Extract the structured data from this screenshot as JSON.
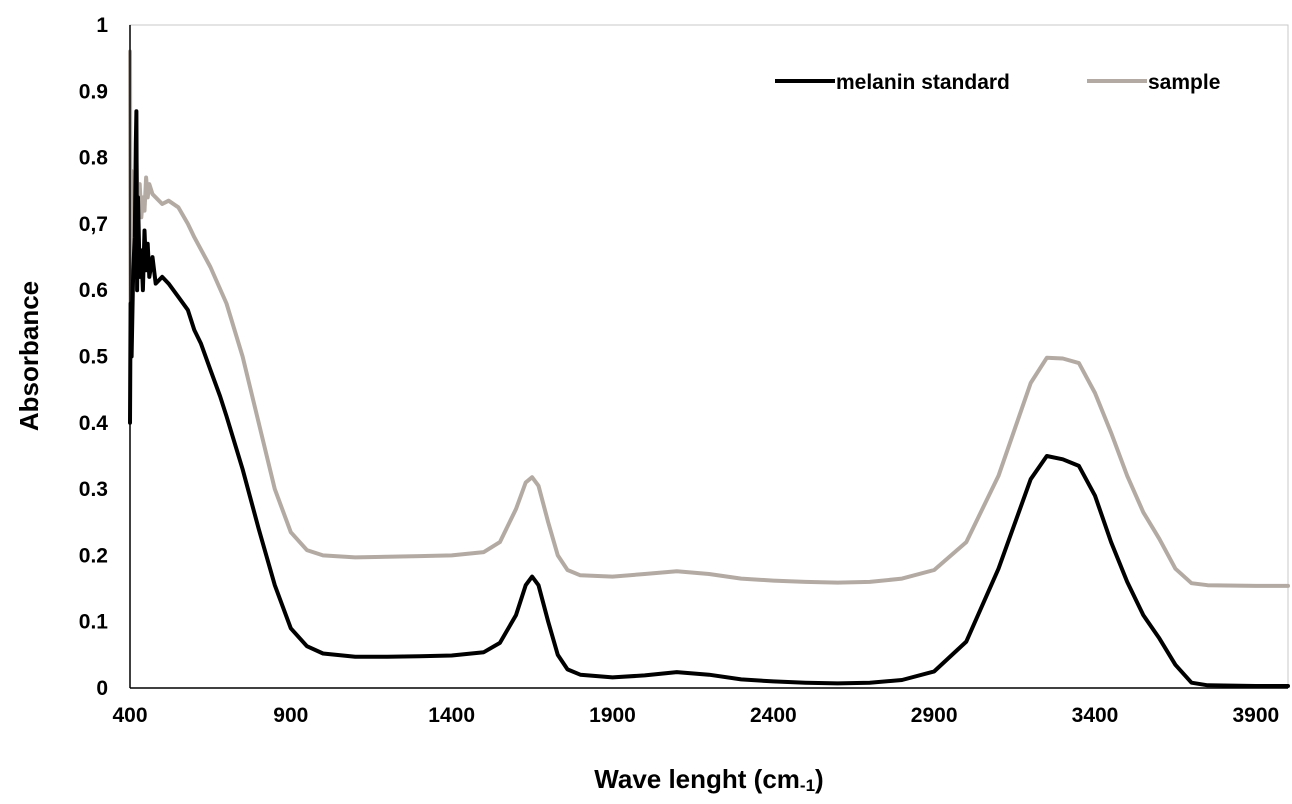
{
  "chart_data": {
    "type": "line",
    "title": "",
    "xlabel": "Wave lenght (cm-1)",
    "xlabel_main": "Wave lenght (cm",
    "xlabel_sub": "-1",
    "xlabel_close": ")",
    "ylabel": "Absorbance",
    "xlim": [
      400,
      4000
    ],
    "ylim": [
      0,
      1
    ],
    "x_ticks": [
      400,
      900,
      1400,
      1900,
      2400,
      2900,
      3400,
      3900
    ],
    "x_tick_labels": [
      "400",
      "900",
      "1400",
      "1900",
      "2400",
      "2900",
      "3400",
      "3900"
    ],
    "y_ticks": [
      0,
      0.1,
      0.2,
      0.3,
      0.4,
      0.5,
      0.6,
      0.7,
      0.8,
      0.9,
      1
    ],
    "y_tick_labels": [
      "0",
      "0.1",
      "0.2",
      "0.3",
      "0.4",
      "0.5",
      "0.6",
      "0,7",
      "0.8",
      "0.9",
      "1"
    ],
    "grid": false,
    "legend_position": "top-right",
    "series": [
      {
        "name": "melanin standard",
        "color": "#000000",
        "points": [
          [
            400,
            0.4
          ],
          [
            402,
            0.58
          ],
          [
            405,
            0.5
          ],
          [
            410,
            0.63
          ],
          [
            415,
            0.68
          ],
          [
            418,
            0.82
          ],
          [
            420,
            0.87
          ],
          [
            422,
            0.6
          ],
          [
            425,
            0.74
          ],
          [
            430,
            0.62
          ],
          [
            435,
            0.66
          ],
          [
            440,
            0.6
          ],
          [
            445,
            0.69
          ],
          [
            450,
            0.63
          ],
          [
            455,
            0.67
          ],
          [
            460,
            0.62
          ],
          [
            470,
            0.65
          ],
          [
            480,
            0.61
          ],
          [
            500,
            0.62
          ],
          [
            520,
            0.61
          ],
          [
            550,
            0.59
          ],
          [
            580,
            0.57
          ],
          [
            600,
            0.54
          ],
          [
            620,
            0.52
          ],
          [
            650,
            0.48
          ],
          [
            680,
            0.44
          ],
          [
            700,
            0.41
          ],
          [
            750,
            0.33
          ],
          [
            800,
            0.24
          ],
          [
            850,
            0.155
          ],
          [
            900,
            0.09
          ],
          [
            950,
            0.063
          ],
          [
            1000,
            0.052
          ],
          [
            1100,
            0.047
          ],
          [
            1200,
            0.047
          ],
          [
            1300,
            0.048
          ],
          [
            1400,
            0.049
          ],
          [
            1500,
            0.054
          ],
          [
            1550,
            0.068
          ],
          [
            1600,
            0.11
          ],
          [
            1630,
            0.155
          ],
          [
            1650,
            0.168
          ],
          [
            1670,
            0.155
          ],
          [
            1700,
            0.1
          ],
          [
            1730,
            0.05
          ],
          [
            1760,
            0.028
          ],
          [
            1800,
            0.02
          ],
          [
            1900,
            0.016
          ],
          [
            2000,
            0.019
          ],
          [
            2100,
            0.024
          ],
          [
            2200,
            0.02
          ],
          [
            2300,
            0.013
          ],
          [
            2400,
            0.01
          ],
          [
            2500,
            0.008
          ],
          [
            2600,
            0.007
          ],
          [
            2700,
            0.008
          ],
          [
            2800,
            0.012
          ],
          [
            2900,
            0.025
          ],
          [
            3000,
            0.07
          ],
          [
            3100,
            0.18
          ],
          [
            3200,
            0.315
          ],
          [
            3250,
            0.35
          ],
          [
            3300,
            0.345
          ],
          [
            3350,
            0.335
          ],
          [
            3400,
            0.29
          ],
          [
            3450,
            0.22
          ],
          [
            3500,
            0.16
          ],
          [
            3550,
            0.11
          ],
          [
            3600,
            0.075
          ],
          [
            3650,
            0.035
          ],
          [
            3700,
            0.008
          ],
          [
            3750,
            0.004
          ],
          [
            3900,
            0.003
          ],
          [
            4000,
            0.003
          ]
        ]
      },
      {
        "name": "sample",
        "color": "#b3aaa3",
        "points": [
          [
            400,
            0.96
          ],
          [
            402,
            0.54
          ],
          [
            404,
            0.78
          ],
          [
            406,
            0.62
          ],
          [
            410,
            0.74
          ],
          [
            415,
            0.7
          ],
          [
            420,
            0.8
          ],
          [
            425,
            0.7
          ],
          [
            430,
            0.76
          ],
          [
            435,
            0.71
          ],
          [
            440,
            0.74
          ],
          [
            445,
            0.72
          ],
          [
            450,
            0.77
          ],
          [
            455,
            0.74
          ],
          [
            460,
            0.76
          ],
          [
            470,
            0.745
          ],
          [
            480,
            0.74
          ],
          [
            500,
            0.73
          ],
          [
            520,
            0.735
          ],
          [
            550,
            0.725
          ],
          [
            580,
            0.7
          ],
          [
            600,
            0.68
          ],
          [
            650,
            0.635
          ],
          [
            700,
            0.58
          ],
          [
            750,
            0.5
          ],
          [
            800,
            0.4
          ],
          [
            850,
            0.3
          ],
          [
            900,
            0.235
          ],
          [
            950,
            0.208
          ],
          [
            1000,
            0.2
          ],
          [
            1100,
            0.197
          ],
          [
            1200,
            0.198
          ],
          [
            1300,
            0.199
          ],
          [
            1400,
            0.2
          ],
          [
            1500,
            0.205
          ],
          [
            1550,
            0.22
          ],
          [
            1600,
            0.27
          ],
          [
            1630,
            0.31
          ],
          [
            1650,
            0.318
          ],
          [
            1670,
            0.305
          ],
          [
            1700,
            0.25
          ],
          [
            1730,
            0.2
          ],
          [
            1760,
            0.178
          ],
          [
            1800,
            0.17
          ],
          [
            1900,
            0.168
          ],
          [
            2000,
            0.172
          ],
          [
            2100,
            0.176
          ],
          [
            2200,
            0.172
          ],
          [
            2300,
            0.165
          ],
          [
            2400,
            0.162
          ],
          [
            2500,
            0.16
          ],
          [
            2600,
            0.159
          ],
          [
            2700,
            0.16
          ],
          [
            2800,
            0.165
          ],
          [
            2900,
            0.178
          ],
          [
            3000,
            0.22
          ],
          [
            3100,
            0.32
          ],
          [
            3200,
            0.46
          ],
          [
            3250,
            0.498
          ],
          [
            3300,
            0.497
          ],
          [
            3350,
            0.49
          ],
          [
            3400,
            0.445
          ],
          [
            3450,
            0.385
          ],
          [
            3500,
            0.32
          ],
          [
            3550,
            0.265
          ],
          [
            3600,
            0.225
          ],
          [
            3650,
            0.18
          ],
          [
            3700,
            0.158
          ],
          [
            3750,
            0.155
          ],
          [
            3900,
            0.154
          ],
          [
            4000,
            0.154
          ]
        ]
      }
    ]
  }
}
